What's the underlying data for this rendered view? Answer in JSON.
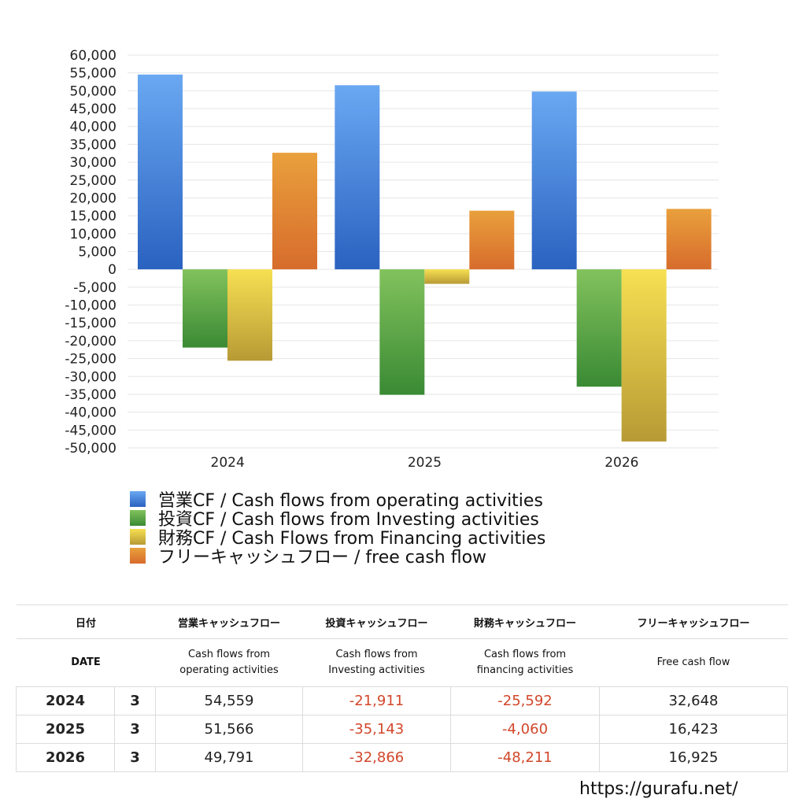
{
  "chart_data": {
    "type": "bar",
    "categories": [
      "2024",
      "2025",
      "2026"
    ],
    "ylim": [
      -50000,
      60000
    ],
    "ytick_step": 5000,
    "grid": true,
    "legend_position": "bottom",
    "series": [
      {
        "name": "営業CF / Cash flows from operating activities",
        "values": [
          54559,
          51566,
          49791
        ],
        "color_top": "#6aa8f2",
        "color_bottom": "#2a62c0"
      },
      {
        "name": "投資CF / Cash flows from Investing activities",
        "values": [
          -21911,
          -35143,
          -32866
        ],
        "color_top": "#82c25d",
        "color_bottom": "#3a8a34"
      },
      {
        "name": "財務CF / Cash Flows from Financing activities",
        "values": [
          -25592,
          -4060,
          -48211
        ],
        "color_top": "#f6e052",
        "color_bottom": "#b89a35"
      },
      {
        "name": "フリーキャッシュフロー / free cash flow",
        "values": [
          32648,
          16423,
          16925
        ],
        "color_top": "#e9a03c",
        "color_bottom": "#d76c2c"
      }
    ]
  },
  "table": {
    "header_jp": [
      "日付",
      "営業キャッシュフロー",
      "投資キャッシュフロー",
      "財務キャッシュフロー",
      "フリーキャッシュフロー"
    ],
    "header_en": {
      "date": "DATE",
      "operating": [
        "Cash flows from",
        "operating activities"
      ],
      "investing": [
        "Cash flows from",
        "Investing activities"
      ],
      "financing": [
        "Cash flows from",
        "financing activities"
      ],
      "free": "Free cash flow"
    },
    "rows": [
      {
        "year": "2024",
        "month": "3",
        "operating": "54,559",
        "investing": "-21,911",
        "financing": "-25,592",
        "free": "32,648"
      },
      {
        "year": "2025",
        "month": "3",
        "operating": "51,566",
        "investing": "-35,143",
        "financing": "-4,060",
        "free": "16,423"
      },
      {
        "year": "2026",
        "month": "3",
        "operating": "49,791",
        "investing": "-32,866",
        "financing": "-48,211",
        "free": "16,925"
      }
    ]
  },
  "footer": {
    "url": "https://gurafu.net/"
  }
}
